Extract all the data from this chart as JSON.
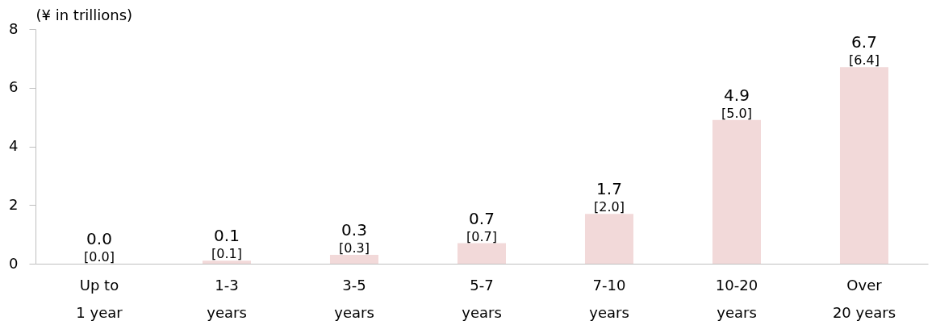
{
  "chart_data": {
    "type": "bar",
    "ylabel": "(¥ in trillions)",
    "categories": [
      "Up to\n1 year",
      "1-3\nyears",
      "3-5\nyears",
      "5-7\nyears",
      "7-10\nyears",
      "10-20\nyears",
      "Over\n20 years"
    ],
    "values": [
      0.0,
      0.1,
      0.3,
      0.7,
      1.7,
      4.9,
      6.7
    ],
    "color": "#f2d9d9",
    "ylim": [
      0,
      8
    ],
    "yticks": [
      0,
      2,
      4,
      6,
      8
    ],
    "grid": false,
    "value_labels": [
      "0.0",
      "0.1",
      "0.3",
      "0.7",
      "1.7",
      "4.9",
      "6.7"
    ],
    "annotations": [
      {
        "text": "[0.0]",
        "x": "Up to\n1 year",
        "y": 0.0
      },
      {
        "text": "[0.1]",
        "x": "1-3\nyears",
        "y": 0.1
      },
      {
        "text": "[0.3]",
        "x": "3-5\nyears",
        "y": 0.3
      },
      {
        "text": "[0.7]",
        "x": "5-7\nyears",
        "y": 0.7
      },
      {
        "text": "[2.0]",
        "x": "7-10\nyears",
        "y": 1.7
      },
      {
        "text": "[5.0]",
        "x": "10-20\nyears",
        "y": 4.9
      },
      {
        "text": "[6.4]",
        "x": "Over\n20 years",
        "y": 6.7
      }
    ]
  }
}
